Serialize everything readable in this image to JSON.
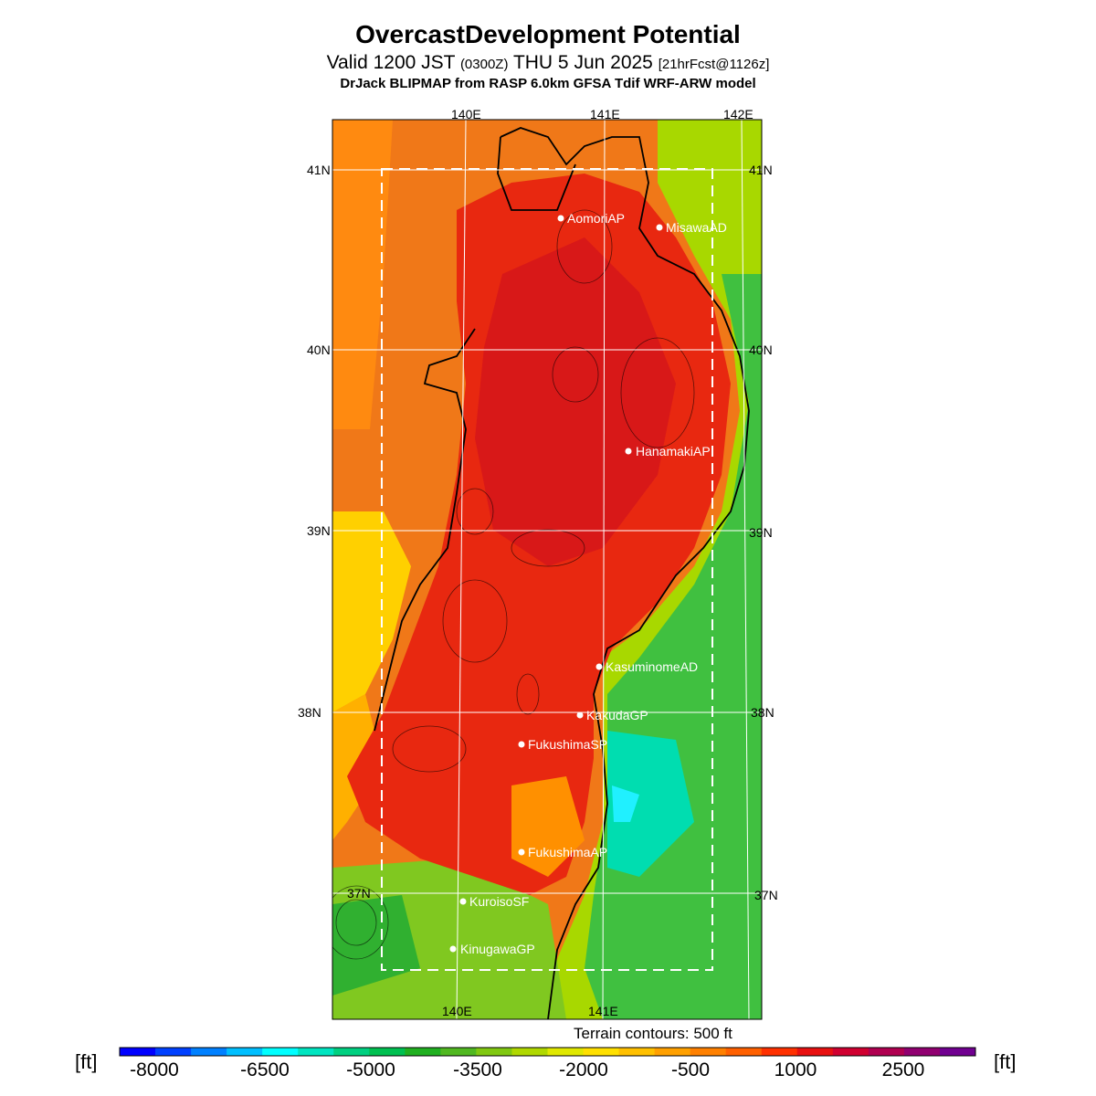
{
  "header": {
    "title": "OvercastDevelopment Potential",
    "valid_prefix": "Valid 1200 JST",
    "valid_z": "(0300Z)",
    "valid_date": "THU 5 Jun 2025",
    "forecast": "[21hrFcst@1126z]",
    "model": "DrJack BLIPMAP from RASP 6.0km GFSA Tdif WRF-ARW model"
  },
  "map": {
    "lon_labels_top": [
      "140E",
      "141E",
      "142E"
    ],
    "lon_labels_bottom": [
      "140E",
      "141E"
    ],
    "lat_labels_left": [
      "41N",
      "40N",
      "39N",
      "38N",
      "37N"
    ],
    "lat_labels_right": [
      "41N",
      "40N",
      "39N",
      "38N",
      "37N"
    ],
    "stations": [
      {
        "name": "AomoriAP"
      },
      {
        "name": "MisawaAD"
      },
      {
        "name": "HanamakiAP"
      },
      {
        "name": "KasuminomeAD"
      },
      {
        "name": "KakudaGP"
      },
      {
        "name": "FukushimaSP"
      },
      {
        "name": "FukushimaAP"
      },
      {
        "name": "KuroisoSF"
      },
      {
        "name": "KinugawaGP"
      }
    ],
    "terrain_note": "Terrain contours: 500 ft"
  },
  "colorbar": {
    "unit": "[ft]",
    "labels": [
      "-8000",
      "-6500",
      "-5000",
      "-3500",
      "-2000",
      "-500",
      "1000",
      "2500"
    ],
    "colors": [
      "#0000ff",
      "#0040ff",
      "#0080ff",
      "#00bfff",
      "#00ffff",
      "#00e5c0",
      "#00d080",
      "#00c050",
      "#20b020",
      "#50b820",
      "#80c810",
      "#b0d800",
      "#e0e800",
      "#ffe000",
      "#ffc000",
      "#ffa000",
      "#ff8000",
      "#ff6000",
      "#ff3000",
      "#e81010",
      "#d00030",
      "#b00050",
      "#900070",
      "#700090"
    ]
  }
}
